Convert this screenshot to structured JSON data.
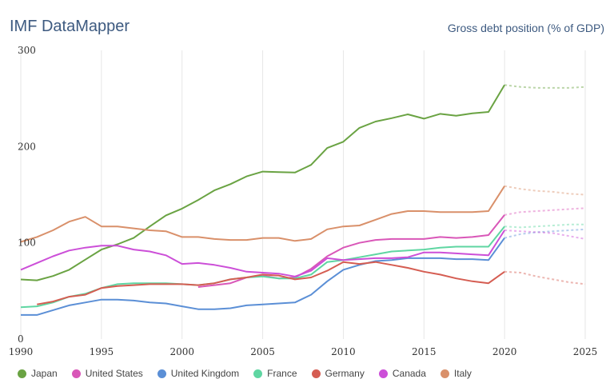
{
  "header": {
    "app_title": "IMF DataMapper",
    "chart_title": "Gross debt position (% of GDP)"
  },
  "chart_data": {
    "type": "line",
    "title": "Gross debt position (% of GDP)",
    "xlim": [
      1990,
      2025
    ],
    "ylim": [
      0,
      300
    ],
    "x_ticks": [
      1990,
      1995,
      2000,
      2005,
      2010,
      2015,
      2020,
      2025
    ],
    "y_ticks": [
      0,
      100,
      200,
      300
    ],
    "grid": "vertical",
    "legend": "bottom",
    "projection_start": 2020,
    "series": [
      {
        "name": "Japan",
        "color": "#6aa343",
        "points": [
          [
            1990,
            61.9
          ],
          [
            1991,
            61
          ],
          [
            1992,
            65.5
          ],
          [
            1993,
            72
          ],
          [
            1994,
            82.5
          ],
          [
            1995,
            93
          ],
          [
            1996,
            98.5
          ],
          [
            1997,
            105
          ],
          [
            1998,
            117
          ],
          [
            1999,
            128.5
          ],
          [
            2000,
            135.5
          ],
          [
            2001,
            144.5
          ],
          [
            2002,
            154.5
          ],
          [
            2003,
            161
          ],
          [
            2004,
            169
          ],
          [
            2005,
            174
          ],
          [
            2006,
            173.5
          ],
          [
            2007,
            173
          ],
          [
            2008,
            181
          ],
          [
            2009,
            198.5
          ],
          [
            2010,
            205
          ],
          [
            2011,
            219.5
          ],
          [
            2012,
            226
          ],
          [
            2013,
            229.5
          ],
          [
            2014,
            233.5
          ],
          [
            2015,
            229
          ],
          [
            2016,
            234
          ],
          [
            2017,
            232
          ],
          [
            2018,
            234.5
          ],
          [
            2019,
            236
          ],
          [
            2020,
            264
          ],
          [
            2021,
            262
          ],
          [
            2022,
            261
          ],
          [
            2023,
            261
          ],
          [
            2024,
            261
          ],
          [
            2025,
            262
          ]
        ]
      },
      {
        "name": "United States",
        "color": "#d957b8",
        "points": [
          [
            2001,
            54
          ],
          [
            2002,
            56
          ],
          [
            2003,
            58
          ],
          [
            2004,
            64
          ],
          [
            2005,
            66
          ],
          [
            2006,
            63
          ],
          [
            2007,
            64
          ],
          [
            2008,
            73
          ],
          [
            2009,
            86
          ],
          [
            2010,
            95
          ],
          [
            2011,
            100
          ],
          [
            2012,
            103
          ],
          [
            2013,
            104
          ],
          [
            2014,
            104
          ],
          [
            2015,
            104
          ],
          [
            2016,
            106
          ],
          [
            2017,
            105
          ],
          [
            2018,
            106
          ],
          [
            2019,
            108
          ],
          [
            2020,
            129
          ],
          [
            2021,
            132
          ],
          [
            2022,
            133
          ],
          [
            2023,
            134
          ],
          [
            2024,
            135
          ],
          [
            2025,
            136
          ]
        ]
      },
      {
        "name": "United Kingdom",
        "color": "#5b8fd6",
        "points": [
          [
            1990,
            25
          ],
          [
            1991,
            25
          ],
          [
            1992,
            30
          ],
          [
            1993,
            35
          ],
          [
            1994,
            38
          ],
          [
            1995,
            41
          ],
          [
            1996,
            41
          ],
          [
            1997,
            40
          ],
          [
            1998,
            38
          ],
          [
            1999,
            37
          ],
          [
            2000,
            34
          ],
          [
            2001,
            31
          ],
          [
            2002,
            31
          ],
          [
            2003,
            32
          ],
          [
            2004,
            35
          ],
          [
            2005,
            36
          ],
          [
            2006,
            37
          ],
          [
            2007,
            38
          ],
          [
            2008,
            46
          ],
          [
            2009,
            60
          ],
          [
            2010,
            72
          ],
          [
            2011,
            77
          ],
          [
            2012,
            81
          ],
          [
            2013,
            82
          ],
          [
            2014,
            84
          ],
          [
            2015,
            84
          ],
          [
            2016,
            84
          ],
          [
            2017,
            83
          ],
          [
            2018,
            83
          ],
          [
            2019,
            82
          ],
          [
            2020,
            105
          ],
          [
            2021,
            109
          ],
          [
            2022,
            111
          ],
          [
            2023,
            112
          ],
          [
            2024,
            113
          ],
          [
            2025,
            114
          ]
        ]
      },
      {
        "name": "France",
        "color": "#5fd6a2",
        "points": [
          [
            1990,
            33
          ],
          [
            1991,
            34
          ],
          [
            1992,
            38
          ],
          [
            1993,
            44
          ],
          [
            1994,
            47
          ],
          [
            1995,
            53
          ],
          [
            1996,
            57
          ],
          [
            1997,
            58
          ],
          [
            1998,
            58
          ],
          [
            1999,
            58
          ],
          [
            2000,
            57
          ],
          [
            2001,
            56
          ],
          [
            2002,
            58
          ],
          [
            2003,
            62
          ],
          [
            2004,
            64
          ],
          [
            2005,
            65
          ],
          [
            2006,
            63
          ],
          [
            2007,
            63
          ],
          [
            2008,
            67
          ],
          [
            2009,
            80
          ],
          [
            2010,
            82
          ],
          [
            2011,
            85
          ],
          [
            2012,
            88
          ],
          [
            2013,
            91
          ],
          [
            2014,
            92
          ],
          [
            2015,
            93
          ],
          [
            2016,
            95
          ],
          [
            2017,
            96
          ],
          [
            2018,
            96
          ],
          [
            2019,
            96
          ],
          [
            2020,
            117
          ],
          [
            2021,
            116
          ],
          [
            2022,
            117
          ],
          [
            2023,
            118
          ],
          [
            2024,
            119
          ],
          [
            2025,
            119
          ]
        ]
      },
      {
        "name": "Germany",
        "color": "#d55d52",
        "points": [
          [
            1991,
            36
          ],
          [
            1992,
            39
          ],
          [
            1993,
            44
          ],
          [
            1994,
            46
          ],
          [
            1995,
            53
          ],
          [
            1996,
            55
          ],
          [
            1997,
            56
          ],
          [
            1998,
            57
          ],
          [
            1999,
            57
          ],
          [
            2000,
            57
          ],
          [
            2001,
            56
          ],
          [
            2002,
            58
          ],
          [
            2003,
            62
          ],
          [
            2004,
            64
          ],
          [
            2005,
            67
          ],
          [
            2006,
            66
          ],
          [
            2007,
            62
          ],
          [
            2008,
            64
          ],
          [
            2009,
            71
          ],
          [
            2010,
            80
          ],
          [
            2011,
            78
          ],
          [
            2012,
            80
          ],
          [
            2013,
            77
          ],
          [
            2014,
            74
          ],
          [
            2015,
            70
          ],
          [
            2016,
            67
          ],
          [
            2017,
            63
          ],
          [
            2018,
            60
          ],
          [
            2019,
            58
          ],
          [
            2020,
            70
          ],
          [
            2021,
            69
          ],
          [
            2022,
            65
          ],
          [
            2023,
            62
          ],
          [
            2024,
            59
          ],
          [
            2025,
            57
          ]
        ]
      },
      {
        "name": "Canada",
        "color": "#cc4fd8",
        "points": [
          [
            1990,
            72
          ],
          [
            1991,
            79
          ],
          [
            1992,
            86
          ],
          [
            1993,
            92
          ],
          [
            1994,
            95
          ],
          [
            1995,
            97
          ],
          [
            1996,
            97
          ],
          [
            1997,
            93
          ],
          [
            1998,
            91
          ],
          [
            1999,
            87
          ],
          [
            2000,
            78
          ],
          [
            2001,
            79
          ],
          [
            2002,
            77
          ],
          [
            2003,
            74
          ],
          [
            2004,
            70
          ],
          [
            2005,
            69
          ],
          [
            2006,
            68
          ],
          [
            2007,
            65
          ],
          [
            2008,
            71
          ],
          [
            2009,
            84
          ],
          [
            2010,
            82
          ],
          [
            2011,
            83
          ],
          [
            2012,
            84
          ],
          [
            2013,
            84
          ],
          [
            2014,
            85
          ],
          [
            2015,
            90
          ],
          [
            2016,
            90
          ],
          [
            2017,
            89
          ],
          [
            2018,
            88
          ],
          [
            2019,
            87
          ],
          [
            2020,
            113
          ],
          [
            2021,
            112
          ],
          [
            2022,
            111
          ],
          [
            2023,
            110
          ],
          [
            2024,
            107
          ],
          [
            2025,
            104
          ]
        ]
      },
      {
        "name": "Italy",
        "color": "#d9906a",
        "points": [
          [
            1990,
            101
          ],
          [
            1991,
            106
          ],
          [
            1992,
            113
          ],
          [
            1993,
            122
          ],
          [
            1994,
            127
          ],
          [
            1995,
            117
          ],
          [
            1996,
            117
          ],
          [
            1997,
            115
          ],
          [
            1998,
            113
          ],
          [
            1999,
            112
          ],
          [
            2000,
            106
          ],
          [
            2001,
            106
          ],
          [
            2002,
            104
          ],
          [
            2003,
            103
          ],
          [
            2004,
            103
          ],
          [
            2005,
            105
          ],
          [
            2006,
            105
          ],
          [
            2007,
            102
          ],
          [
            2008,
            104
          ],
          [
            2009,
            114
          ],
          [
            2010,
            117
          ],
          [
            2011,
            118
          ],
          [
            2012,
            124
          ],
          [
            2013,
            130
          ],
          [
            2014,
            133
          ],
          [
            2015,
            133
          ],
          [
            2016,
            132
          ],
          [
            2017,
            132
          ],
          [
            2018,
            132
          ],
          [
            2019,
            133
          ],
          [
            2020,
            159
          ],
          [
            2021,
            156
          ],
          [
            2022,
            154
          ],
          [
            2023,
            153
          ],
          [
            2024,
            151
          ],
          [
            2025,
            150
          ]
        ]
      }
    ]
  }
}
